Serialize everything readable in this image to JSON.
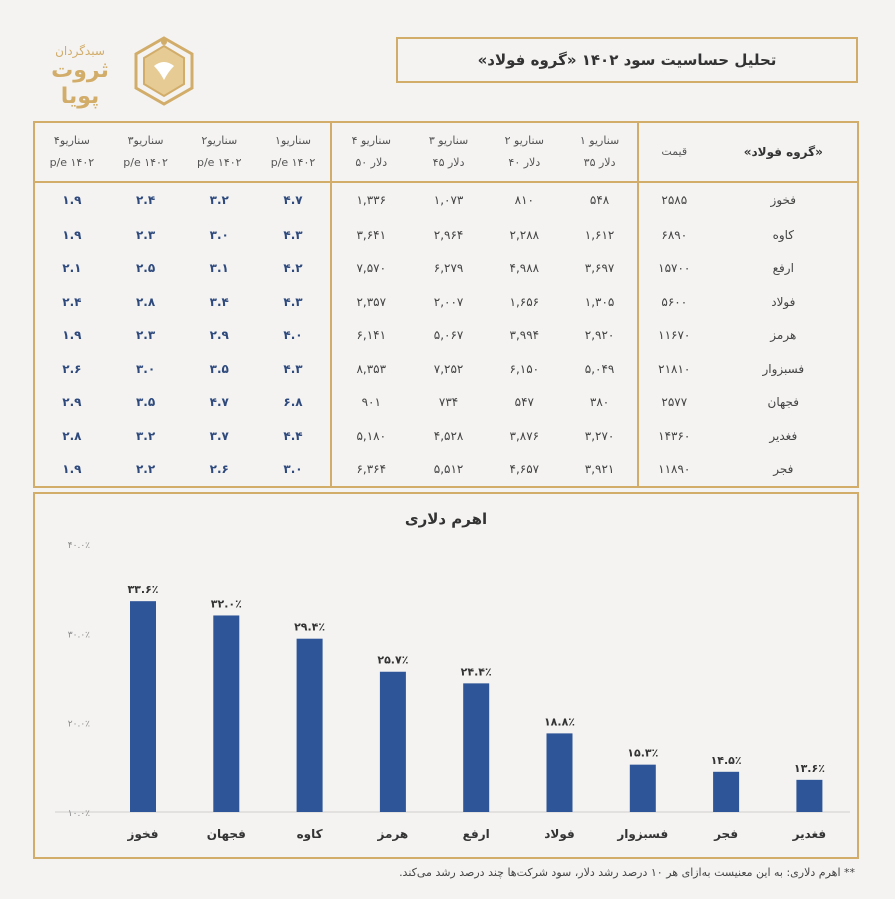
{
  "logo": {
    "line1": "سبدگردان",
    "line2": "ثروت پویا"
  },
  "title": "تحلیل حساسیت سود ۱۴۰۲ «گروه فولاد»",
  "table": {
    "headers": [
      [
        "«گروه فولاد»",
        ""
      ],
      [
        "قیمت",
        ""
      ],
      [
        "سناریو ۱",
        "دلار ۳۵"
      ],
      [
        "سناریو ۲",
        "دلار ۴۰"
      ],
      [
        "سناریو ۳",
        "دلار ۴۵"
      ],
      [
        "سناریو ۴",
        "دلار ۵۰"
      ],
      [
        "سناریو۱",
        "p/e ۱۴۰۲"
      ],
      [
        "سناریو۲",
        "p/e ۱۴۰۲"
      ],
      [
        "سناریو۳",
        "p/e ۱۴۰۲"
      ],
      [
        "سناریو۴",
        "p/e ۱۴۰۲"
      ]
    ],
    "rows": [
      [
        "فخوز",
        "۲۵۸۵",
        "۵۴۸",
        "۸۱۰",
        "۱,۰۷۳",
        "۱,۳۳۶",
        "۴.۷",
        "۳.۲",
        "۲.۴",
        "۱.۹"
      ],
      [
        "کاوه",
        "۶۸۹۰",
        "۱,۶۱۲",
        "۲,۲۸۸",
        "۲,۹۶۴",
        "۳,۶۴۱",
        "۴.۳",
        "۳.۰",
        "۲.۳",
        "۱.۹"
      ],
      [
        "ارفع",
        "۱۵۷۰۰",
        "۳,۶۹۷",
        "۴,۹۸۸",
        "۶,۲۷۹",
        "۷,۵۷۰",
        "۴.۲",
        "۳.۱",
        "۲.۵",
        "۲.۱"
      ],
      [
        "فولاد",
        "۵۶۰۰",
        "۱,۳۰۵",
        "۱,۶۵۶",
        "۲,۰۰۷",
        "۲,۳۵۷",
        "۴.۳",
        "۳.۴",
        "۲.۸",
        "۲.۴"
      ],
      [
        "هرمز",
        "۱۱۶۷۰",
        "۲,۹۲۰",
        "۳,۹۹۴",
        "۵,۰۶۷",
        "۶,۱۴۱",
        "۴.۰",
        "۲.۹",
        "۲.۳",
        "۱.۹"
      ],
      [
        "فسبزوار",
        "۲۱۸۱۰",
        "۵,۰۴۹",
        "۶,۱۵۰",
        "۷,۲۵۲",
        "۸,۳۵۳",
        "۴.۳",
        "۳.۵",
        "۳.۰",
        "۲.۶"
      ],
      [
        "فجهان",
        "۲۵۷۷",
        "۳۸۰",
        "۵۴۷",
        "۷۳۴",
        "۹۰۱",
        "۶.۸",
        "۴.۷",
        "۳.۵",
        "۲.۹"
      ],
      [
        "فغدیر",
        "۱۴۳۶۰",
        "۳,۲۷۰",
        "۳,۸۷۶",
        "۴,۵۲۸",
        "۵,۱۸۰",
        "۴.۴",
        "۳.۷",
        "۳.۲",
        "۲.۸"
      ],
      [
        "فجر",
        "۱۱۸۹۰",
        "۳,۹۲۱",
        "۴,۶۵۷",
        "۵,۵۱۲",
        "۶,۳۶۴",
        "۳.۰",
        "۲.۶",
        "۲.۲",
        "۱.۹"
      ]
    ]
  },
  "chart_data": {
    "type": "bar",
    "title": "اهرم دلاری",
    "categories": [
      "فخوز",
      "فجهان",
      "کاوه",
      "هرمز",
      "ارفع",
      "فولاد",
      "فسبزوار",
      "فجر",
      "فغدیر"
    ],
    "values": [
      33.6,
      32.0,
      29.4,
      25.7,
      24.4,
      18.8,
      15.3,
      14.5,
      13.6
    ],
    "value_labels": [
      "۳۳.۶٪",
      "۳۲.۰٪",
      "۲۹.۴٪",
      "۲۵.۷٪",
      "۲۴.۴٪",
      "۱۸.۸٪",
      "۱۵.۳٪",
      "۱۴.۵٪",
      "۱۳.۶٪"
    ],
    "ylim": [
      10,
      40
    ],
    "yticks": [
      10,
      20,
      30,
      40
    ],
    "ytick_labels": [
      "۱۰.۰٪",
      "۲۰.۰٪",
      "۳۰.۰٪",
      "۴۰.۰٪"
    ],
    "bar_color": "#2e5597",
    "grid": false
  },
  "footnote": "** اهرم دلاری: به این معنیست به‌ازای هر ۱۰ درصد رشد دلار، سود شرکت‌ها چند درصد رشد می‌کند.",
  "colors": {
    "gold": "#d2ad6a",
    "bar": "#2e5597",
    "pe_text": "#2e4a7d"
  }
}
